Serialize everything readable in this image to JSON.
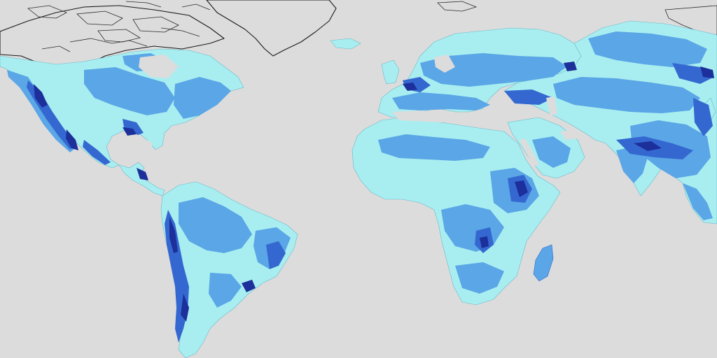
{
  "map": {
    "projection": "equirectangular",
    "background_color": "#dcdcdc",
    "legend_visible": false,
    "text_labels_visible": false,
    "palette": {
      "ocean": "#dcdcdc",
      "ice_or_no_data": "#ffffff",
      "coastline": "#1a1a1a",
      "class_low": "#a8eef0",
      "class_medium": "#5aa6e6",
      "class_high": "#3468d0",
      "class_very_high": "#1c2f9a"
    },
    "regions": [
      {
        "name": "north-america",
        "base_class": "class_low"
      },
      {
        "name": "central-america",
        "base_class": "class_low"
      },
      {
        "name": "south-america",
        "base_class": "class_low"
      },
      {
        "name": "greenland",
        "base_class": "ice_or_no_data"
      },
      {
        "name": "canadian-arctic",
        "base_class": "ice_or_no_data"
      },
      {
        "name": "europe",
        "base_class": "class_low"
      },
      {
        "name": "africa",
        "base_class": "class_low"
      },
      {
        "name": "madagascar",
        "base_class": "class_medium"
      },
      {
        "name": "arabian-peninsula",
        "base_class": "class_low"
      },
      {
        "name": "asia",
        "base_class": "class_low"
      },
      {
        "name": "india",
        "base_class": "class_low"
      }
    ]
  }
}
